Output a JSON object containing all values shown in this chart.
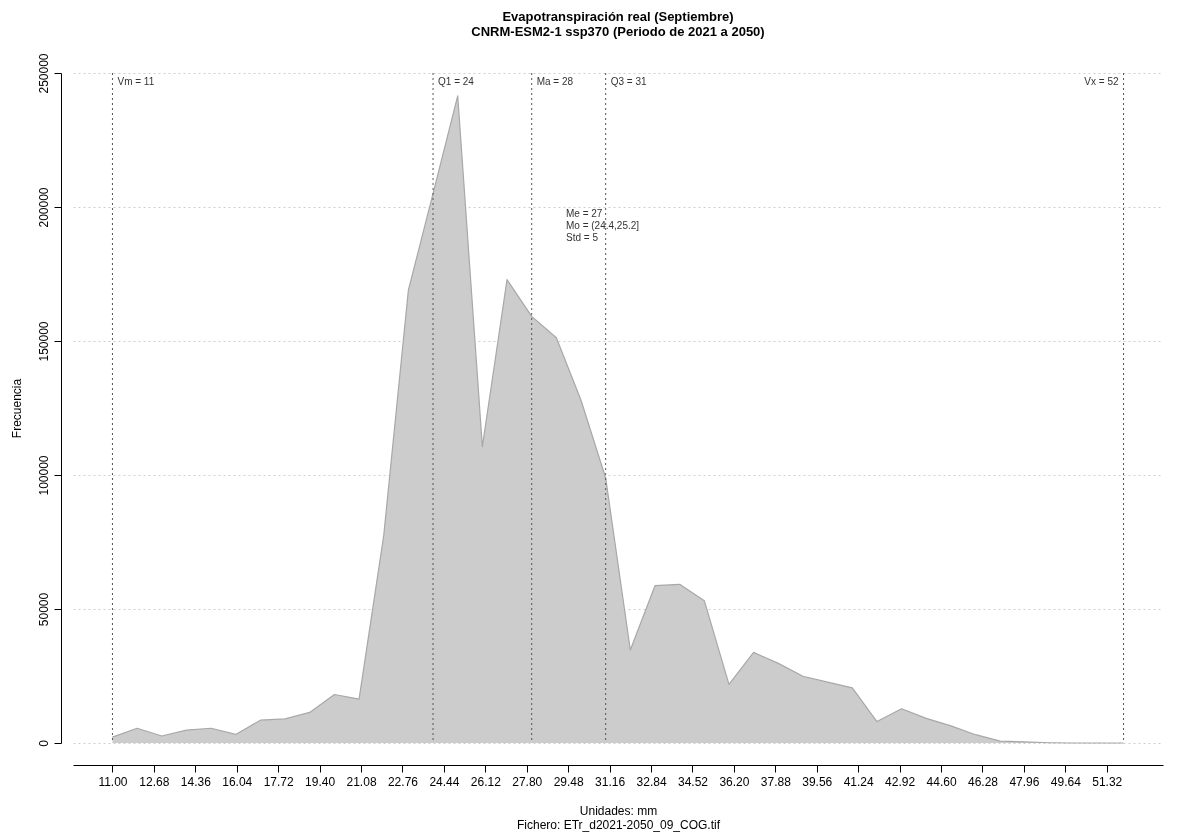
{
  "chart_data": {
    "type": "area",
    "title": "Evapotranspiración real (Septiembre)",
    "subtitle": "CNRM-ESM2-1 ssp370 (Periodo de 2021 a 2050)",
    "xlabel": "Unidades: mm",
    "ylabel": "Frecuencia",
    "x": [
      11,
      12,
      13,
      14,
      15,
      16,
      17,
      18,
      19,
      20,
      21,
      22,
      23,
      24,
      25,
      26,
      27,
      28,
      29,
      30,
      31,
      32,
      33,
      34,
      35,
      36,
      37,
      38,
      39,
      40,
      41,
      42,
      43,
      44,
      45,
      46,
      47,
      48,
      49,
      50,
      51,
      52
    ],
    "series": [
      {
        "color": "#cccccc",
        "values": [
          2200,
          5500,
          2600,
          4800,
          5500,
          3200,
          8500,
          9000,
          11400,
          18100,
          16400,
          77400,
          169000,
          205000,
          241500,
          110600,
          172900,
          159200,
          151200,
          127900,
          98900,
          34700,
          58700,
          59200,
          53100,
          21900,
          33800,
          29700,
          24900,
          22700,
          20600,
          8000,
          12800,
          9200,
          6400,
          3100,
          700,
          400,
          100,
          0,
          0,
          0
        ]
      }
    ],
    "xlim": [
      9.4,
      53.6
    ],
    "ylim": [
      0,
      250000
    ],
    "xticks": [
      {
        "value": 11,
        "label": "11.00"
      },
      {
        "value": 12.68,
        "label": "12.68"
      },
      {
        "value": 14.36,
        "label": "14.36"
      },
      {
        "value": 16.04,
        "label": "16.04"
      },
      {
        "value": 17.72,
        "label": "17.72"
      },
      {
        "value": 19.4,
        "label": "19.40"
      },
      {
        "value": 21.08,
        "label": "21.08"
      },
      {
        "value": 22.76,
        "label": "22.76"
      },
      {
        "value": 24.44,
        "label": "24.44"
      },
      {
        "value": 26.12,
        "label": "26.12"
      },
      {
        "value": 27.8,
        "label": "27.80"
      },
      {
        "value": 29.48,
        "label": "29.48"
      },
      {
        "value": 31.16,
        "label": "31.16"
      },
      {
        "value": 32.84,
        "label": "32.84"
      },
      {
        "value": 34.52,
        "label": "34.52"
      },
      {
        "value": 36.2,
        "label": "36.20"
      },
      {
        "value": 37.88,
        "label": "37.88"
      },
      {
        "value": 39.56,
        "label": "39.56"
      },
      {
        "value": 41.24,
        "label": "41.24"
      },
      {
        "value": 42.92,
        "label": "42.92"
      },
      {
        "value": 44.6,
        "label": "44.60"
      },
      {
        "value": 46.28,
        "label": "46.28"
      },
      {
        "value": 47.96,
        "label": "47.96"
      },
      {
        "value": 49.64,
        "label": "49.64"
      },
      {
        "value": 51.32,
        "label": "51.32"
      }
    ],
    "yticks": [
      0,
      50000,
      100000,
      150000,
      200000,
      250000
    ],
    "grid": "y",
    "ref_lines": [
      {
        "axis": "x",
        "value": 11,
        "label": "Vm = 11",
        "line_style": "dotted"
      },
      {
        "axis": "x",
        "value": 24,
        "label": "Q1 = 24",
        "line_style": "dotted"
      },
      {
        "axis": "x",
        "value": 28,
        "label": "Ma = 28",
        "line_style": "dotted"
      },
      {
        "axis": "x",
        "value": 31,
        "label": "Q3 = 31",
        "line_style": "dotted"
      },
      {
        "axis": "x",
        "value": 52,
        "label": "Vx = 52",
        "line_style": "dotted"
      }
    ],
    "annotations": [
      "Me = 27",
      "Mo = (24.4,25.2]",
      "Std = 5",
      "Fichero: ETr_d2021-2050_09_COG.tif"
    ]
  }
}
